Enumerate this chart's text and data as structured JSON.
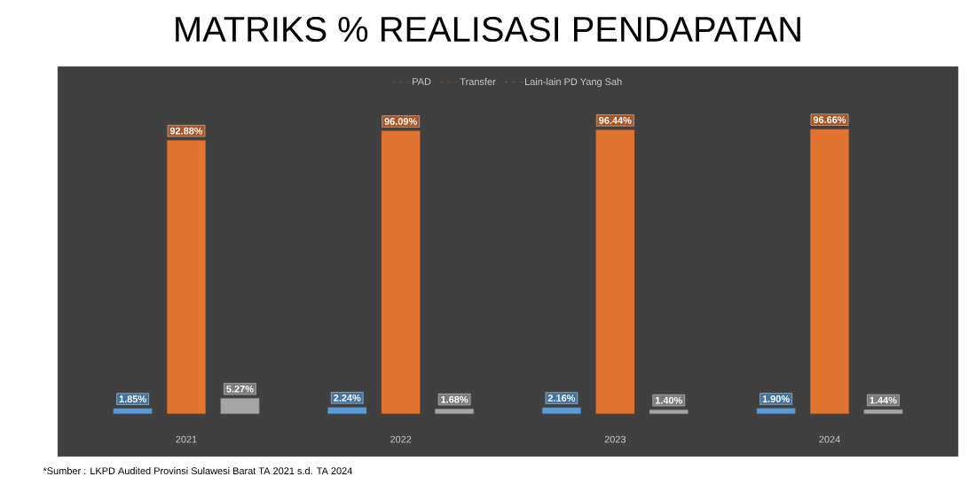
{
  "chart_data": {
    "type": "bar",
    "title": "MATRIKS % REALISASI PENDAPATAN",
    "categories": [
      "2021",
      "2022",
      "2023",
      "2024"
    ],
    "series": [
      {
        "name": "PAD",
        "color": "#5b9bd5",
        "values": [
          1.85,
          2.24,
          2.16,
          1.9
        ],
        "value_labels": [
          "1.85%",
          "2.24%",
          "2.16%",
          "1.90%"
        ]
      },
      {
        "name": "Transfer",
        "color": "#e07430",
        "values": [
          92.88,
          96.09,
          96.44,
          96.66
        ],
        "value_labels": [
          "92.88%",
          "96.09%",
          "96.44%",
          "96.66%"
        ]
      },
      {
        "name": "Lain-lain PD Yang Sah",
        "color": "#a5a5a5",
        "values": [
          5.27,
          1.68,
          1.4,
          1.44
        ],
        "value_labels": [
          "5.27%",
          "1.68%",
          "1.40%",
          "1.44%"
        ]
      }
    ],
    "legend": "top",
    "annotations": [
      "*Sumber : LKPD Audited Provinsi Sulawesi Barat TA 2021 s.d. TA 2024"
    ]
  }
}
